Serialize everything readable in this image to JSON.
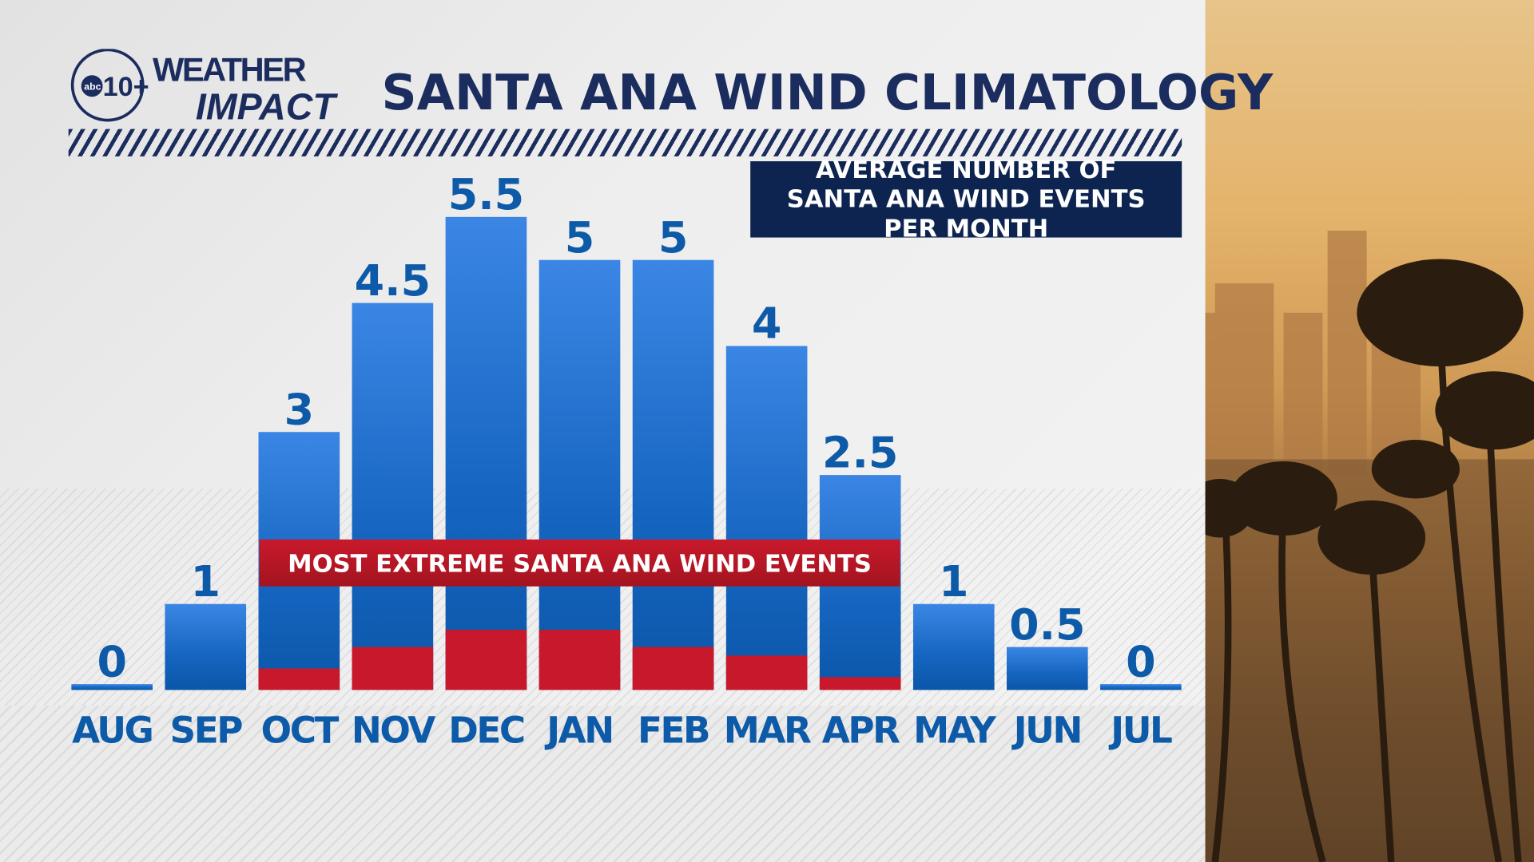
{
  "header": {
    "logo_text": "abc10+ WEATHER IMPACT",
    "title": "SANTA ANA WIND CLIMATOLOGY"
  },
  "colors": {
    "bar": "#1565c0",
    "bar_top": "#3b86e4",
    "extreme": "#c8192c",
    "title": "#1b2c5e",
    "legend_bg": "#0d2450"
  },
  "chart_data": {
    "type": "bar",
    "title": "SANTA ANA WIND CLIMATOLOGY",
    "legend": "AVERAGE NUMBER OF SANTA ANA WIND EVENTS PER MONTH",
    "annotation": "MOST EXTREME SANTA ANA WIND EVENTS",
    "categories": [
      "AUG",
      "SEP",
      "OCT",
      "NOV",
      "DEC",
      "JAN",
      "FEB",
      "MAR",
      "APR",
      "MAY",
      "JUN",
      "JUL"
    ],
    "values": [
      0,
      1,
      3,
      4.5,
      5.5,
      5,
      5,
      4,
      2.5,
      1,
      0.5,
      0
    ],
    "value_labels": [
      "0",
      "1",
      "3",
      "4.5",
      "5.5",
      "5",
      "5",
      "4",
      "2.5",
      "1",
      "0.5",
      "0"
    ],
    "extreme_values": [
      0,
      0,
      0.25,
      0.5,
      0.7,
      0.7,
      0.5,
      0.4,
      0.15,
      0,
      0,
      0
    ],
    "ylim": [
      0,
      5.5
    ],
    "grid": false
  }
}
